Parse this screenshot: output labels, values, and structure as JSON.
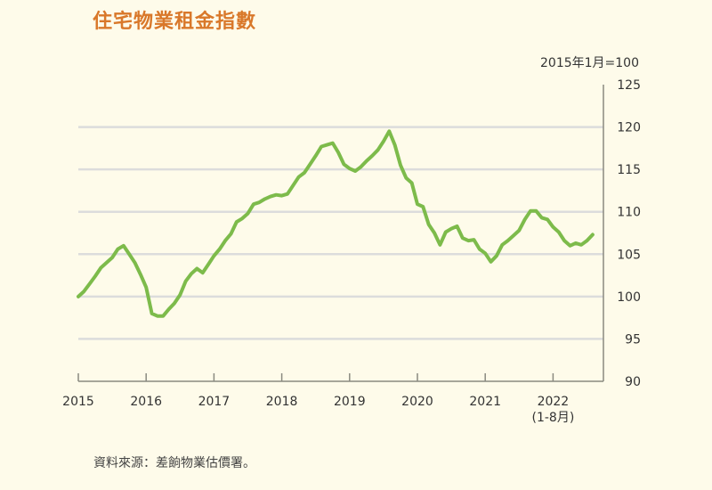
{
  "title": "住宅物業租金指數",
  "unit_label": "2015年1月=100",
  "source": "資料來源：差餉物業估價署。",
  "colors": {
    "background": "#fefbea",
    "title": "#d9782a",
    "line": "#7dbb4b",
    "grid": "#dcdcdc",
    "axis": "#8a8a80"
  },
  "chart_data": {
    "type": "line",
    "title": "住宅物業租金指數",
    "subtitle": "2015年1月=100",
    "xlabel": "",
    "ylabel": "",
    "ylim": [
      90,
      125
    ],
    "yticks": [
      90,
      95,
      100,
      105,
      110,
      115,
      120,
      125
    ],
    "y_axis_position": "right",
    "grid": true,
    "xtick_labels": [
      "2015",
      "2016",
      "2017",
      "2018",
      "2019",
      "2020",
      "2021",
      "2022\n(1-8月)"
    ],
    "x_range": "2015-01 to 2022-08 (monthly)",
    "series": [
      {
        "name": "住宅物業租金指數",
        "start": "2015-01",
        "frequency": "monthly",
        "values": [
          100.0,
          100.6,
          101.5,
          102.4,
          103.4,
          104.0,
          104.6,
          105.6,
          106.0,
          105.0,
          104.0,
          102.6,
          101.1,
          98.0,
          97.7,
          97.7,
          98.5,
          99.2,
          100.2,
          101.8,
          102.7,
          103.3,
          102.8,
          103.8,
          104.8,
          105.6,
          106.6,
          107.4,
          108.8,
          109.2,
          109.8,
          110.9,
          111.1,
          111.5,
          111.8,
          112.0,
          111.9,
          112.1,
          113.1,
          114.1,
          114.6,
          115.6,
          116.6,
          117.7,
          117.9,
          118.1,
          117.0,
          115.6,
          115.1,
          114.8,
          115.3,
          116.0,
          116.6,
          117.3,
          118.3,
          119.5,
          117.9,
          115.5,
          114.0,
          113.4,
          110.9,
          110.6,
          108.5,
          107.5,
          106.1,
          107.6,
          108.0,
          108.3,
          106.9,
          106.6,
          106.7,
          105.6,
          105.1,
          104.1,
          104.8,
          106.1,
          106.6,
          107.2,
          107.8,
          109.1,
          110.1,
          110.1,
          109.3,
          109.1,
          108.2,
          107.6,
          106.6,
          106.0,
          106.3,
          106.1,
          106.6,
          107.3
        ]
      }
    ]
  }
}
